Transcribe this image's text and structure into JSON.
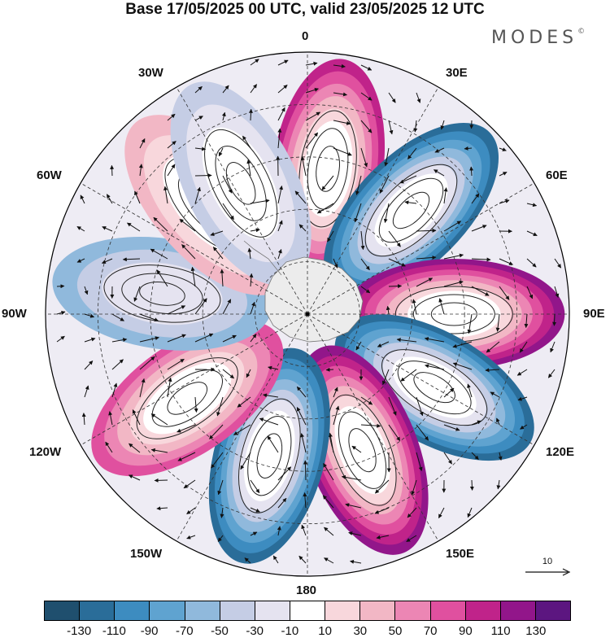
{
  "header": {
    "title": "Base 17/05/2025 00 UTC, valid 23/05/2025 12 UTC",
    "brand": "MODES",
    "brand_mark": "©"
  },
  "map": {
    "projection": "south-polar-stereographic",
    "longitude_labels": {
      "lon_0": "0",
      "lon_30e": "30E",
      "lon_60e": "60E",
      "lon_90e": "90E",
      "lon_120e": "120E",
      "lon_150e": "150E",
      "lon_180": "180",
      "lon_150w": "150W",
      "lon_120w": "120W",
      "lon_90w": "90W",
      "lon_60w": "60W",
      "lon_30w": "30W"
    },
    "anomaly_centers": [
      {
        "lon": 8,
        "level": 110
      },
      {
        "lon": 45,
        "level": -130
      },
      {
        "lon": 90,
        "level": 130
      },
      {
        "lon": 120,
        "level": -130
      },
      {
        "lon": 158,
        "level": 130
      },
      {
        "lon": 195,
        "level": -130
      },
      {
        "lon": 235,
        "level": 90
      },
      {
        "lon": 278,
        "level": -60
      },
      {
        "lon": 318,
        "level": 50
      },
      {
        "lon": 333,
        "level": -50
      }
    ]
  },
  "vector_reference": {
    "label": "10"
  },
  "colorbar": {
    "colors": [
      "#1f4f6e",
      "#2a6d99",
      "#3d8cc0",
      "#5fa3d0",
      "#90b9dc",
      "#c5cde5",
      "#e5e3f0",
      "#ffffff",
      "#f8d7dc",
      "#f2b7c5",
      "#ec86b4",
      "#e0509f",
      "#c0238a",
      "#92168a",
      "#5c1680"
    ],
    "labels": [
      "-130",
      "-110",
      "-90",
      "-70",
      "-50",
      "-30",
      "-10",
      "10",
      "30",
      "50",
      "70",
      "90",
      "110",
      "130"
    ]
  }
}
